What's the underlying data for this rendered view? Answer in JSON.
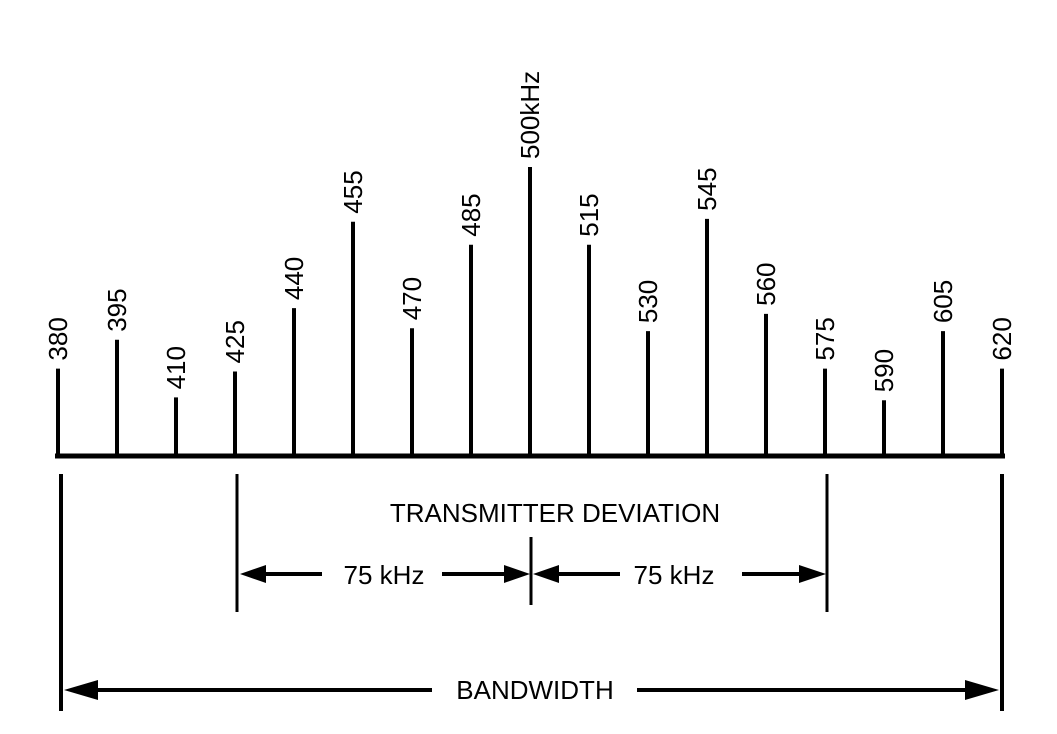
{
  "diagram": {
    "sidebands": [
      {
        "label": "380",
        "relative_amplitude": 0.3
      },
      {
        "label": "395",
        "relative_amplitude": 0.4
      },
      {
        "label": "410",
        "relative_amplitude": 0.2
      },
      {
        "label": "425",
        "relative_amplitude": 0.29
      },
      {
        "label": "440",
        "relative_amplitude": 0.51
      },
      {
        "label": "455",
        "relative_amplitude": 0.81
      },
      {
        "label": "470",
        "relative_amplitude": 0.44
      },
      {
        "label": "485",
        "relative_amplitude": 0.73
      },
      {
        "label": "500kHz",
        "relative_amplitude": 1.0
      },
      {
        "label": "515",
        "relative_amplitude": 0.73
      },
      {
        "label": "530",
        "relative_amplitude": 0.43
      },
      {
        "label": "545",
        "relative_amplitude": 0.82
      },
      {
        "label": "560",
        "relative_amplitude": 0.49
      },
      {
        "label": "575",
        "relative_amplitude": 0.3
      },
      {
        "label": "590",
        "relative_amplitude": 0.19
      },
      {
        "label": "605",
        "relative_amplitude": 0.43
      },
      {
        "label": "620",
        "relative_amplitude": 0.3
      }
    ],
    "transmitter_deviation_label": "TRANSMITTER DEVIATION",
    "left_deviation_label": "75 kHz",
    "right_deviation_label": "75 kHz",
    "bandwidth_label": "BANDWIDTH",
    "line_color": "#000000",
    "background_color": "#ffffff"
  }
}
